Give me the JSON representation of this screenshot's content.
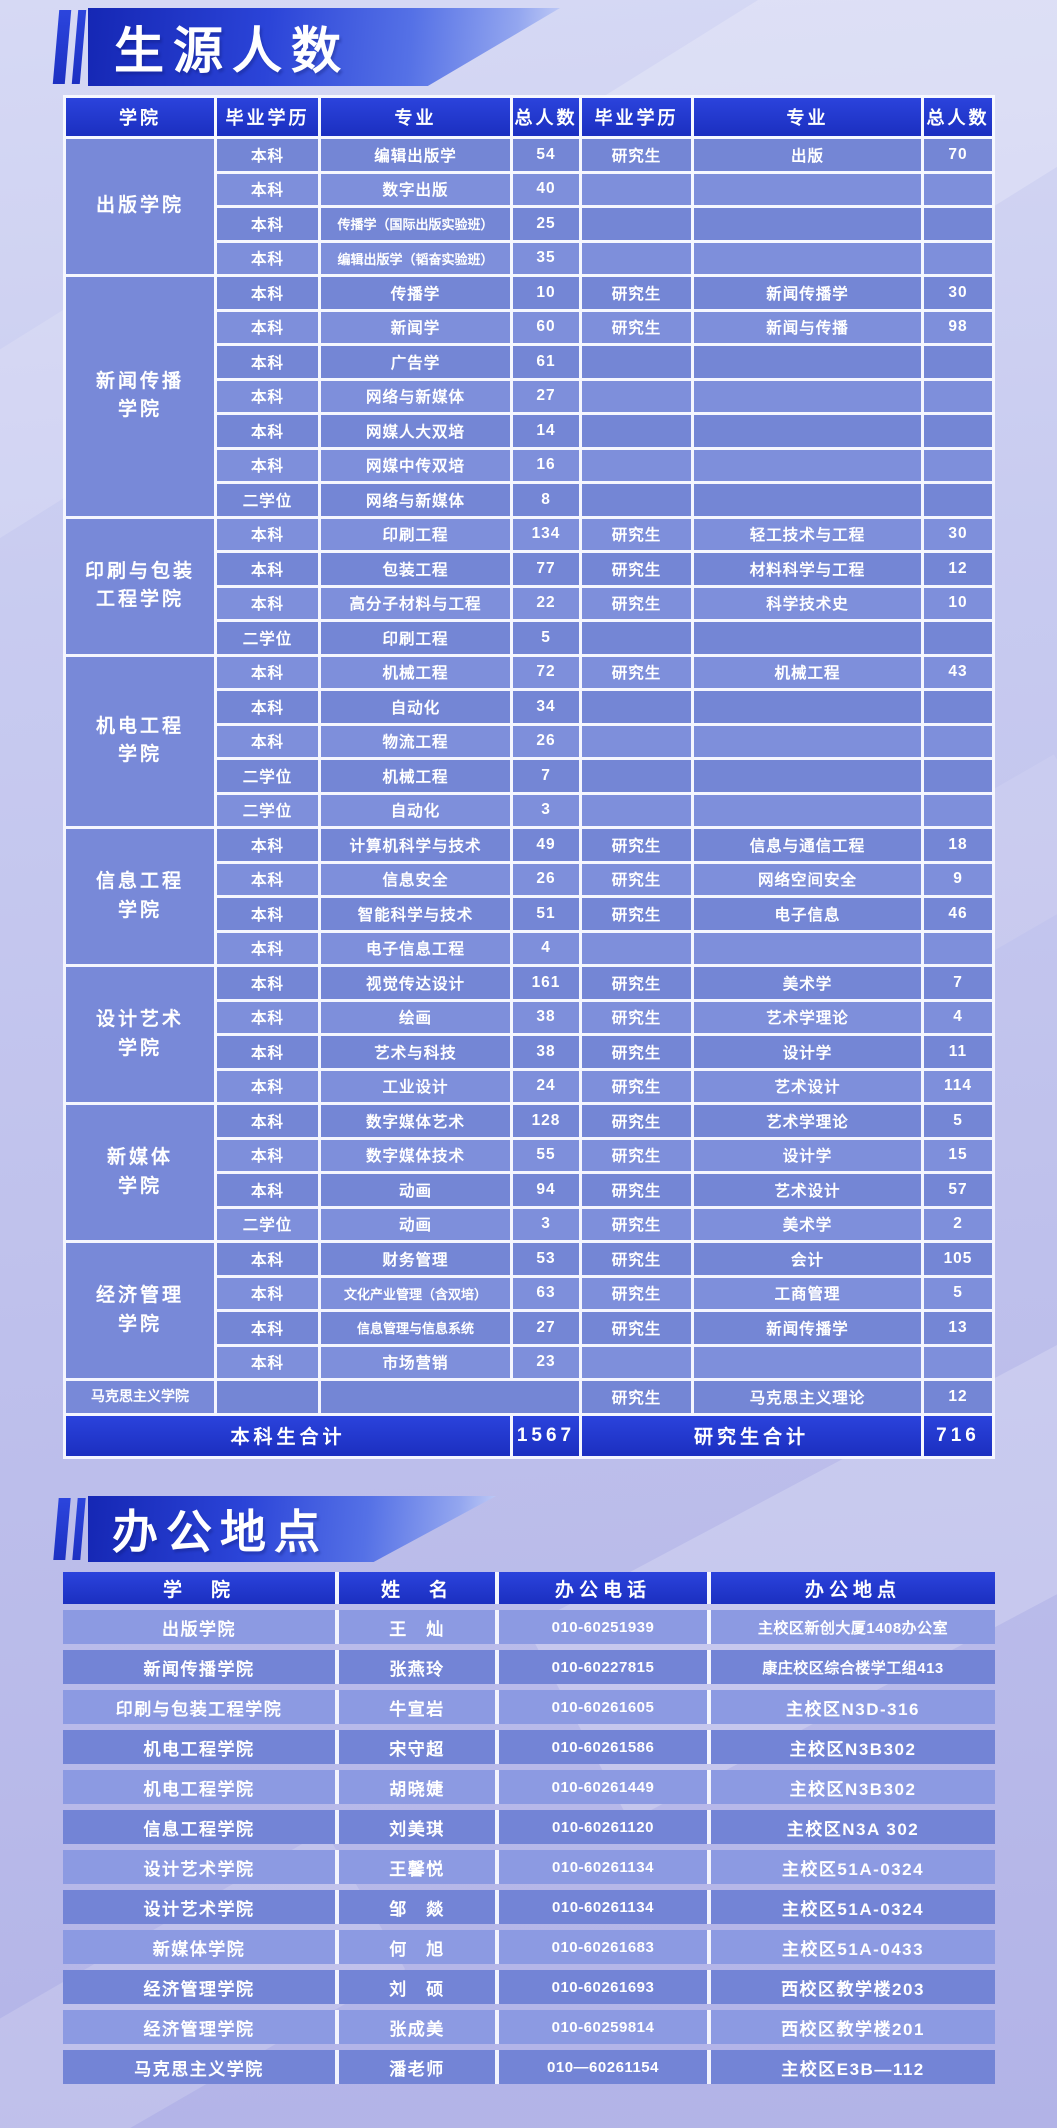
{
  "colors": {
    "header_blue_top": "#2b43dc",
    "header_blue_bottom": "#1b2fc0",
    "row_light": "#7e8fdb",
    "row_dark": "#7486d5",
    "college_cell": "#7889d8",
    "office_light": "#8c9ae2",
    "office_dark": "#7384d6",
    "page_bg_top": "#d6d9f4",
    "page_bg_bottom": "#b2b3e7",
    "banner_deep": "#1527b4",
    "banner_mid": "#2b44d8"
  },
  "enrollment": {
    "title": "生源人数",
    "columns": [
      "学院",
      "毕业学历",
      "专业",
      "总人数",
      "毕业学历",
      "专业",
      "总人数"
    ],
    "sections": [
      {
        "college": "出版学院",
        "rows": [
          {
            "cells": [
              "本科",
              "编辑出版学",
              "54",
              "研究生",
              "出版",
              "70"
            ]
          },
          {
            "cells": [
              "本科",
              "数字出版",
              "40",
              "",
              "",
              ""
            ]
          },
          {
            "cells": [
              "本科",
              "传播学（国际出版实验班）",
              "25",
              "",
              "",
              ""
            ]
          },
          {
            "cells": [
              "本科",
              "编辑出版学（韬奋实验班）",
              "35",
              "",
              "",
              ""
            ]
          }
        ]
      },
      {
        "college": "新闻传播\n学院",
        "rows": [
          {
            "cells": [
              "本科",
              "传播学",
              "10",
              "研究生",
              "新闻传播学",
              "30"
            ]
          },
          {
            "cells": [
              "本科",
              "新闻学",
              "60",
              "研究生",
              "新闻与传播",
              "98"
            ]
          },
          {
            "cells": [
              "本科",
              "广告学",
              "61",
              "",
              "",
              ""
            ]
          },
          {
            "cells": [
              "本科",
              "网络与新媒体",
              "27",
              "",
              "",
              ""
            ]
          },
          {
            "cells": [
              "本科",
              "网媒人大双培",
              "14",
              "",
              "",
              ""
            ]
          },
          {
            "cells": [
              "本科",
              "网媒中传双培",
              "16",
              "",
              "",
              ""
            ]
          },
          {
            "cells": [
              "二学位",
              "网络与新媒体",
              "8",
              "",
              "",
              ""
            ]
          }
        ]
      },
      {
        "college": "印刷与包装\n工程学院",
        "rows": [
          {
            "cells": [
              "本科",
              "印刷工程",
              "134",
              "研究生",
              "轻工技术与工程",
              "30"
            ]
          },
          {
            "cells": [
              "本科",
              "包装工程",
              "77",
              "研究生",
              "材料科学与工程",
              "12"
            ]
          },
          {
            "cells": [
              "本科",
              "高分子材料与工程",
              "22",
              "研究生",
              "科学技术史",
              "10"
            ]
          },
          {
            "cells": [
              "二学位",
              "印刷工程",
              "5",
              "",
              "",
              ""
            ]
          }
        ]
      },
      {
        "college": "机电工程\n学院",
        "rows": [
          {
            "cells": [
              "本科",
              "机械工程",
              "72",
              "研究生",
              "机械工程",
              "43"
            ]
          },
          {
            "cells": [
              "本科",
              "自动化",
              "34",
              "",
              "",
              ""
            ]
          },
          {
            "cells": [
              "本科",
              "物流工程",
              "26",
              "",
              "",
              ""
            ]
          },
          {
            "cells": [
              "二学位",
              "机械工程",
              "7",
              "",
              "",
              ""
            ]
          },
          {
            "cells": [
              "二学位",
              "自动化",
              "3",
              "",
              "",
              ""
            ]
          }
        ]
      },
      {
        "college": "信息工程\n学院",
        "rows": [
          {
            "cells": [
              "本科",
              "计算机科学与技术",
              "49",
              "研究生",
              "信息与通信工程",
              "18"
            ]
          },
          {
            "cells": [
              "本科",
              "信息安全",
              "26",
              "研究生",
              "网络空间安全",
              "9"
            ]
          },
          {
            "cells": [
              "本科",
              "智能科学与技术",
              "51",
              "研究生",
              "电子信息",
              "46"
            ]
          },
          {
            "cells": [
              "本科",
              "电子信息工程",
              "4",
              "",
              "",
              ""
            ]
          }
        ]
      },
      {
        "college": "设计艺术\n学院",
        "rows": [
          {
            "cells": [
              "本科",
              "视觉传达设计",
              "161",
              "研究生",
              "美术学",
              "7"
            ]
          },
          {
            "cells": [
              "本科",
              "绘画",
              "38",
              "研究生",
              "艺术学理论",
              "4"
            ]
          },
          {
            "cells": [
              "本科",
              "艺术与科技",
              "38",
              "研究生",
              "设计学",
              "11"
            ]
          },
          {
            "cells": [
              "本科",
              "工业设计",
              "24",
              "研究生",
              "艺术设计",
              "114"
            ]
          }
        ]
      },
      {
        "college": "新媒体\n学院",
        "rows": [
          {
            "cells": [
              "本科",
              "数字媒体艺术",
              "128",
              "研究生",
              "艺术学理论",
              "5"
            ]
          },
          {
            "cells": [
              "本科",
              "数字媒体技术",
              "55",
              "研究生",
              "设计学",
              "15"
            ]
          },
          {
            "cells": [
              "本科",
              "动画",
              "94",
              "研究生",
              "艺术设计",
              "57"
            ]
          },
          {
            "cells": [
              "二学位",
              "动画",
              "3",
              "研究生",
              "美术学",
              "2"
            ]
          }
        ]
      },
      {
        "college": "经济管理\n学院",
        "rows": [
          {
            "cells": [
              "本科",
              "财务管理",
              "53",
              "研究生",
              "会计",
              "105"
            ]
          },
          {
            "cells": [
              "本科",
              "文化产业管理（含双培）",
              "63",
              "研究生",
              "工商管理",
              "5"
            ]
          },
          {
            "cells": [
              "本科",
              "信息管理与信息系统",
              "27",
              "研究生",
              "新闻传播学",
              "13"
            ]
          },
          {
            "cells": [
              "本科",
              "市场营销",
              "23",
              "",
              "",
              ""
            ]
          }
        ]
      },
      {
        "college": "马克思主义学院",
        "small": true,
        "rows": [
          {
            "span2": true,
            "cells": [
              "",
              "",
              "",
              "研究生",
              "马克思主义理论",
              "12"
            ]
          }
        ]
      }
    ],
    "footer": {
      "ug_label": "本科生合计",
      "ug_total": "1567",
      "g_label": "研究生合计",
      "g_total": "716"
    }
  },
  "offices": {
    "title": "办公地点",
    "columns": [
      "学　院",
      "姓　名",
      "办公电话",
      "办公地点"
    ],
    "rows": [
      [
        "出版学院",
        "王　灿",
        "010-60251939",
        "主校区新创大厦1408办公室"
      ],
      [
        "新闻传播学院",
        "张燕玲",
        "010-60227815",
        "康庄校区综合楼学工组413"
      ],
      [
        "印刷与包装工程学院",
        "牛宣岩",
        "010-60261605",
        "主校区N3D-316"
      ],
      [
        "机电工程学院",
        "宋守超",
        "010-60261586",
        "主校区N3B302"
      ],
      [
        "机电工程学院",
        "胡晓婕",
        "010-60261449",
        "主校区N3B302"
      ],
      [
        "信息工程学院",
        "刘美琪",
        "010-60261120",
        "主校区N3A 302"
      ],
      [
        "设计艺术学院",
        "王馨悦",
        "010-60261134",
        "主校区51A-0324"
      ],
      [
        "设计艺术学院",
        "邹　燚",
        "010-60261134",
        "主校区51A-0324"
      ],
      [
        "新媒体学院",
        "何　旭",
        "010-60261683",
        "主校区51A-0433"
      ],
      [
        "经济管理学院",
        "刘　硕",
        "010-60261693",
        "西校区教学楼203"
      ],
      [
        "经济管理学院",
        "张成美",
        "010-60259814",
        "西校区教学楼201"
      ],
      [
        "马克思主义学院",
        "潘老师",
        "010—60261154",
        "主校区E3B—112"
      ]
    ]
  }
}
